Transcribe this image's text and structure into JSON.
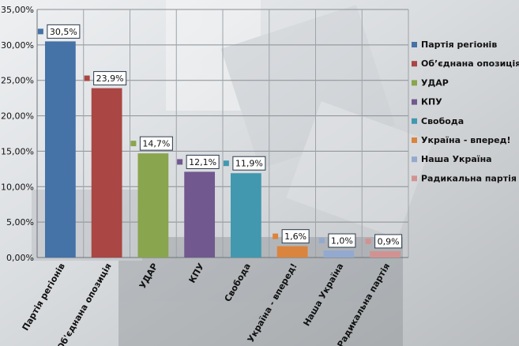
{
  "chart_data": {
    "type": "bar",
    "categories": [
      "Партія регіонів",
      "Об'єднана опозиція",
      "УДАР",
      "КПУ",
      "Свобода",
      "Україна - вперед!",
      "Наша Україна",
      "Радикальна партія"
    ],
    "values": [
      30.5,
      23.9,
      14.7,
      12.1,
      11.9,
      1.6,
      1.0,
      0.9
    ],
    "data_labels": [
      "30,5%",
      "23,9%",
      "14,7%",
      "12,1%",
      "11,9%",
      "1,6%",
      "1,0%",
      "0,9%"
    ],
    "legend_labels": [
      "Партія регіонів",
      "Об’єднана опозиція",
      "УДАР",
      "КПУ",
      "Свобода",
      "Україна  - вперед!",
      "Наша  Україна",
      "Радикальна  партія"
    ],
    "colors": [
      "#4572a7",
      "#aa4643",
      "#89a54e",
      "#71588f",
      "#4198af",
      "#db843d",
      "#93a9cf",
      "#d19392"
    ],
    "ylim": [
      0,
      35
    ],
    "yticks": [
      0,
      5,
      10,
      15,
      20,
      25,
      30,
      35
    ],
    "ytick_labels": [
      "0,00%",
      "5,00%",
      "10,00%",
      "15,00%",
      "20,00%",
      "25,00%",
      "30,00%",
      "35,00%"
    ],
    "title": "",
    "xlabel": "",
    "ylabel": "",
    "grid": true,
    "legend_position": "right"
  }
}
